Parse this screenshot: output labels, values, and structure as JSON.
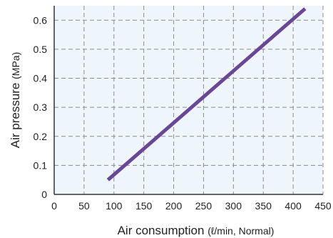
{
  "chart_data": {
    "type": "line",
    "title": "",
    "xlabel": "Air consumption",
    "xlabel_unit": "(ℓ/min, Normal)",
    "ylabel": "Air pressure",
    "ylabel_unit": "(MPa)",
    "xlim": [
      0,
      450
    ],
    "ylim": [
      0,
      0.65
    ],
    "x_ticks": [
      "0",
      "50",
      "100",
      "150",
      "200",
      "250",
      "300",
      "350",
      "400",
      "450"
    ],
    "y_ticks": [
      "0",
      "0.1",
      "0.2",
      "0.3",
      "0.4",
      "0.5",
      "0.6"
    ],
    "grid": true,
    "legend": "none",
    "series": [
      {
        "x": [
          90,
          420
        ],
        "y": [
          0.05,
          0.64
        ]
      }
    ],
    "colors": {
      "series": "#6a4796",
      "plot_background": "#eef6fc",
      "grid": "#8c8c8c",
      "axis": "#333333"
    }
  }
}
